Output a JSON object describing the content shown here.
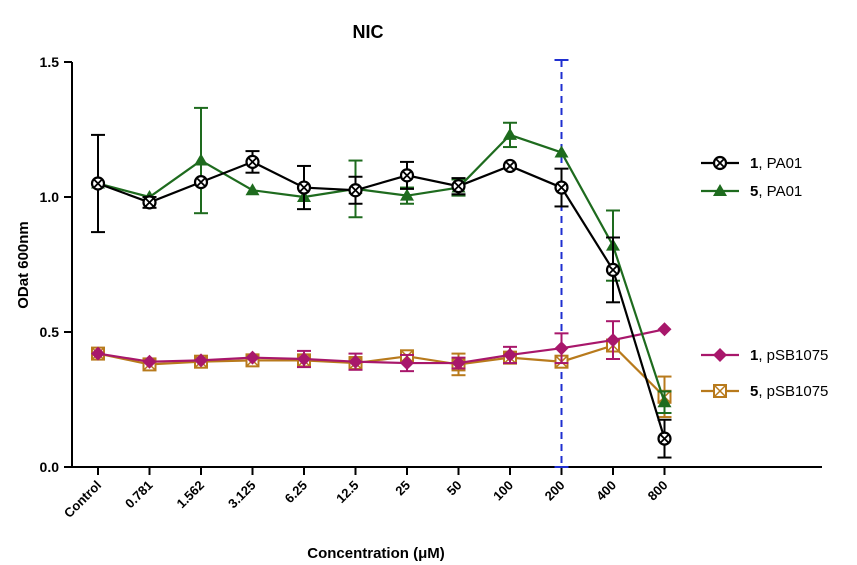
{
  "chart_data": {
    "type": "line",
    "title": "NIC",
    "xlabel": "Concentration (μM)",
    "ylabel": "ODat 600nm",
    "categories": [
      "Control",
      "0.781",
      "1.562",
      "3.125",
      "6.25",
      "12.5",
      "25",
      "50",
      "100",
      "200",
      "400",
      "800"
    ],
    "ylim": [
      0,
      1.5
    ],
    "yticks": [
      "0.0",
      "0.5",
      "1.0",
      "1.5"
    ],
    "grid": false,
    "legend_placement": "right",
    "reference_line": {
      "category": "200",
      "color": "#1f2fd0",
      "style": "dashed"
    },
    "series": [
      {
        "id": "s1pa",
        "legend_bold": "1",
        "legend_rest": ", PA01",
        "color": "#000000",
        "marker": "circle-cross",
        "values": [
          1.05,
          0.98,
          1.055,
          1.13,
          1.035,
          1.025,
          1.08,
          1.04,
          1.115,
          1.035,
          0.73,
          0.105
        ],
        "errors": [
          0.18,
          0.02,
          0.0,
          0.04,
          0.08,
          0.05,
          0.05,
          0.03,
          0.0,
          0.07,
          0.12,
          0.07
        ]
      },
      {
        "id": "s5pa",
        "legend_bold": "5",
        "legend_rest": ", PA01",
        "color": "#1e6b1e",
        "marker": "triangle",
        "values": [
          1.05,
          1.0,
          1.135,
          1.025,
          1.0,
          1.03,
          1.005,
          1.035,
          1.23,
          1.165,
          0.82,
          0.24
        ],
        "errors": [
          0.0,
          0.0,
          0.195,
          0.0,
          0.0,
          0.105,
          0.03,
          0.03,
          0.045,
          0.0,
          0.13,
          0.04
        ]
      },
      {
        "id": "s1sb",
        "legend_bold": "1",
        "legend_rest": ", pSB1075",
        "color": "#a8176b",
        "marker": "diamond",
        "values": [
          0.42,
          0.39,
          0.395,
          0.405,
          0.4,
          0.39,
          0.385,
          0.385,
          0.415,
          0.44,
          0.47,
          0.51
        ],
        "errors": [
          0.0,
          0.0,
          0.0,
          0.0,
          0.03,
          0.03,
          0.03,
          0.02,
          0.03,
          0.055,
          0.07,
          0.0
        ]
      },
      {
        "id": "s5sb",
        "legend_bold": "5",
        "legend_rest": ", pSB1075",
        "color": "#b87a1c",
        "marker": "square-cross",
        "values": [
          0.42,
          0.38,
          0.39,
          0.395,
          0.395,
          0.385,
          0.41,
          0.38,
          0.405,
          0.39,
          0.45,
          0.26
        ],
        "errors": [
          0.0,
          0.0,
          0.0,
          0.0,
          0.0,
          0.0,
          0.0,
          0.04,
          0.0,
          0.0,
          0.0,
          0.075
        ]
      }
    ]
  }
}
